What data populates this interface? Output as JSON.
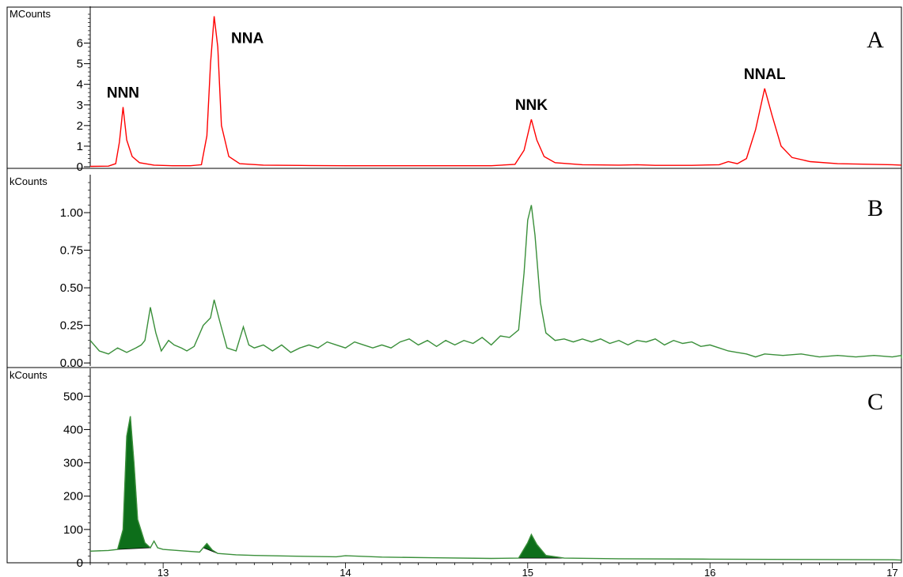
{
  "chart_data": [
    {
      "type": "line",
      "panel_label": "A",
      "unit": "MCounts",
      "ylim": [
        0,
        7.4
      ],
      "yticks": [
        "0",
        "1",
        "2",
        "3",
        "4",
        "5",
        "6"
      ],
      "color": "#ff0000",
      "fill": false,
      "peak_labels": [
        {
          "text": "NNN",
          "x": 12.78,
          "y": 2.9
        },
        {
          "text": "NNA",
          "x": 13.28,
          "y": 7.3
        },
        {
          "text": "NNK",
          "x": 15.02,
          "y": 2.3
        },
        {
          "text": "NNAL",
          "x": 16.3,
          "y": 3.8
        }
      ],
      "series": [
        {
          "points": [
            [
              12.6,
              0.02
            ],
            [
              12.7,
              0.03
            ],
            [
              12.74,
              0.15
            ],
            [
              12.76,
              1.2
            ],
            [
              12.78,
              2.9
            ],
            [
              12.8,
              1.3
            ],
            [
              12.83,
              0.5
            ],
            [
              12.87,
              0.2
            ],
            [
              12.95,
              0.08
            ],
            [
              13.05,
              0.05
            ],
            [
              13.15,
              0.05
            ],
            [
              13.21,
              0.1
            ],
            [
              13.24,
              1.5
            ],
            [
              13.26,
              5.0
            ],
            [
              13.28,
              7.3
            ],
            [
              13.3,
              5.8
            ],
            [
              13.32,
              2.0
            ],
            [
              13.36,
              0.5
            ],
            [
              13.42,
              0.15
            ],
            [
              13.55,
              0.08
            ],
            [
              13.8,
              0.06
            ],
            [
              14.0,
              0.05
            ],
            [
              14.4,
              0.05
            ],
            [
              14.8,
              0.05
            ],
            [
              14.93,
              0.12
            ],
            [
              14.98,
              0.8
            ],
            [
              15.02,
              2.3
            ],
            [
              15.05,
              1.3
            ],
            [
              15.09,
              0.5
            ],
            [
              15.15,
              0.2
            ],
            [
              15.3,
              0.1
            ],
            [
              15.5,
              0.08
            ],
            [
              15.6,
              0.1
            ],
            [
              15.7,
              0.07
            ],
            [
              15.9,
              0.07
            ],
            [
              16.05,
              0.1
            ],
            [
              16.1,
              0.25
            ],
            [
              16.15,
              0.15
            ],
            [
              16.2,
              0.4
            ],
            [
              16.25,
              1.8
            ],
            [
              16.3,
              3.8
            ],
            [
              16.34,
              2.5
            ],
            [
              16.39,
              1.0
            ],
            [
              16.45,
              0.45
            ],
            [
              16.55,
              0.25
            ],
            [
              16.7,
              0.15
            ],
            [
              17.0,
              0.1
            ],
            [
              17.2,
              0.08
            ]
          ]
        }
      ]
    },
    {
      "type": "line",
      "panel_label": "B",
      "unit": "kCounts",
      "ylim": [
        -0.02,
        1.2
      ],
      "yticks": [
        "0.00",
        "0.25",
        "0.50",
        "0.75",
        "1.00"
      ],
      "color": "#3a8f3a",
      "fill": false,
      "series": [
        {
          "points": [
            [
              12.6,
              0.15
            ],
            [
              12.65,
              0.08
            ],
            [
              12.7,
              0.06
            ],
            [
              12.75,
              0.1
            ],
            [
              12.8,
              0.07
            ],
            [
              12.85,
              0.1
            ],
            [
              12.88,
              0.12
            ],
            [
              12.9,
              0.15
            ],
            [
              12.93,
              0.37
            ],
            [
              12.96,
              0.2
            ],
            [
              12.99,
              0.08
            ],
            [
              13.03,
              0.15
            ],
            [
              13.06,
              0.12
            ],
            [
              13.1,
              0.1
            ],
            [
              13.13,
              0.08
            ],
            [
              13.17,
              0.11
            ],
            [
              13.22,
              0.25
            ],
            [
              13.26,
              0.3
            ],
            [
              13.28,
              0.42
            ],
            [
              13.31,
              0.28
            ],
            [
              13.35,
              0.1
            ],
            [
              13.4,
              0.08
            ],
            [
              13.44,
              0.24
            ],
            [
              13.47,
              0.12
            ],
            [
              13.5,
              0.1
            ],
            [
              13.55,
              0.12
            ],
            [
              13.6,
              0.08
            ],
            [
              13.65,
              0.12
            ],
            [
              13.7,
              0.07
            ],
            [
              13.75,
              0.1
            ],
            [
              13.8,
              0.12
            ],
            [
              13.85,
              0.1
            ],
            [
              13.9,
              0.14
            ],
            [
              13.95,
              0.12
            ],
            [
              14.0,
              0.1
            ],
            [
              14.05,
              0.14
            ],
            [
              14.1,
              0.12
            ],
            [
              14.15,
              0.1
            ],
            [
              14.2,
              0.12
            ],
            [
              14.25,
              0.1
            ],
            [
              14.3,
              0.14
            ],
            [
              14.35,
              0.16
            ],
            [
              14.4,
              0.12
            ],
            [
              14.45,
              0.15
            ],
            [
              14.5,
              0.11
            ],
            [
              14.55,
              0.15
            ],
            [
              14.6,
              0.12
            ],
            [
              14.65,
              0.15
            ],
            [
              14.7,
              0.13
            ],
            [
              14.75,
              0.17
            ],
            [
              14.8,
              0.12
            ],
            [
              14.85,
              0.18
            ],
            [
              14.9,
              0.17
            ],
            [
              14.95,
              0.22
            ],
            [
              14.98,
              0.6
            ],
            [
              15.0,
              0.95
            ],
            [
              15.02,
              1.05
            ],
            [
              15.04,
              0.85
            ],
            [
              15.07,
              0.4
            ],
            [
              15.1,
              0.2
            ],
            [
              15.15,
              0.15
            ],
            [
              15.2,
              0.16
            ],
            [
              15.25,
              0.14
            ],
            [
              15.3,
              0.16
            ],
            [
              15.35,
              0.14
            ],
            [
              15.4,
              0.16
            ],
            [
              15.45,
              0.13
            ],
            [
              15.5,
              0.15
            ],
            [
              15.55,
              0.12
            ],
            [
              15.6,
              0.15
            ],
            [
              15.65,
              0.14
            ],
            [
              15.7,
              0.16
            ],
            [
              15.75,
              0.12
            ],
            [
              15.8,
              0.15
            ],
            [
              15.85,
              0.13
            ],
            [
              15.9,
              0.14
            ],
            [
              15.95,
              0.11
            ],
            [
              16.0,
              0.12
            ],
            [
              16.05,
              0.1
            ],
            [
              16.1,
              0.08
            ],
            [
              16.15,
              0.07
            ],
            [
              16.2,
              0.06
            ],
            [
              16.25,
              0.04
            ],
            [
              16.3,
              0.06
            ],
            [
              16.4,
              0.05
            ],
            [
              16.5,
              0.06
            ],
            [
              16.6,
              0.04
            ],
            [
              16.7,
              0.05
            ],
            [
              16.8,
              0.04
            ],
            [
              16.9,
              0.05
            ],
            [
              17.0,
              0.04
            ],
            [
              17.1,
              0.05
            ],
            [
              17.2,
              0.03
            ]
          ]
        }
      ]
    },
    {
      "type": "area",
      "panel_label": "C",
      "unit": "kCounts",
      "ylim": [
        0,
        560
      ],
      "yticks": [
        "0",
        "100",
        "200",
        "300",
        "400",
        "500"
      ],
      "color": "#3a8f3a",
      "fill_color": "#0d6e1a",
      "xlim": [
        12.6,
        17.05
      ],
      "xticks": [
        "13",
        "14",
        "15",
        "16",
        "17"
      ],
      "series": [
        {
          "points": [
            [
              12.6,
              35
            ],
            [
              12.7,
              37
            ],
            [
              12.75,
              40
            ],
            [
              12.78,
              100
            ],
            [
              12.8,
              380
            ],
            [
              12.82,
              440
            ],
            [
              12.84,
              300
            ],
            [
              12.86,
              130
            ],
            [
              12.9,
              60
            ],
            [
              12.93,
              45
            ],
            [
              12.95,
              65
            ],
            [
              12.97,
              45
            ],
            [
              13.0,
              40
            ],
            [
              13.1,
              36
            ],
            [
              13.2,
              32
            ],
            [
              13.22,
              45
            ],
            [
              13.24,
              58
            ],
            [
              13.27,
              38
            ],
            [
              13.3,
              28
            ],
            [
              13.4,
              24
            ],
            [
              13.5,
              22
            ],
            [
              13.7,
              20
            ],
            [
              13.95,
              18
            ],
            [
              14.0,
              21
            ],
            [
              14.2,
              17
            ],
            [
              14.5,
              15
            ],
            [
              14.8,
              13
            ],
            [
              14.95,
              14
            ],
            [
              15.0,
              60
            ],
            [
              15.02,
              85
            ],
            [
              15.05,
              55
            ],
            [
              15.1,
              22
            ],
            [
              15.2,
              14
            ],
            [
              15.5,
              12
            ],
            [
              16.0,
              11
            ],
            [
              16.5,
              10
            ],
            [
              17.0,
              9
            ],
            [
              17.2,
              8
            ]
          ]
        }
      ],
      "shaded_peaks": [
        [
          12.75,
          12.93
        ],
        [
          13.21,
          13.3
        ],
        [
          14.93,
          15.2
        ]
      ]
    }
  ]
}
